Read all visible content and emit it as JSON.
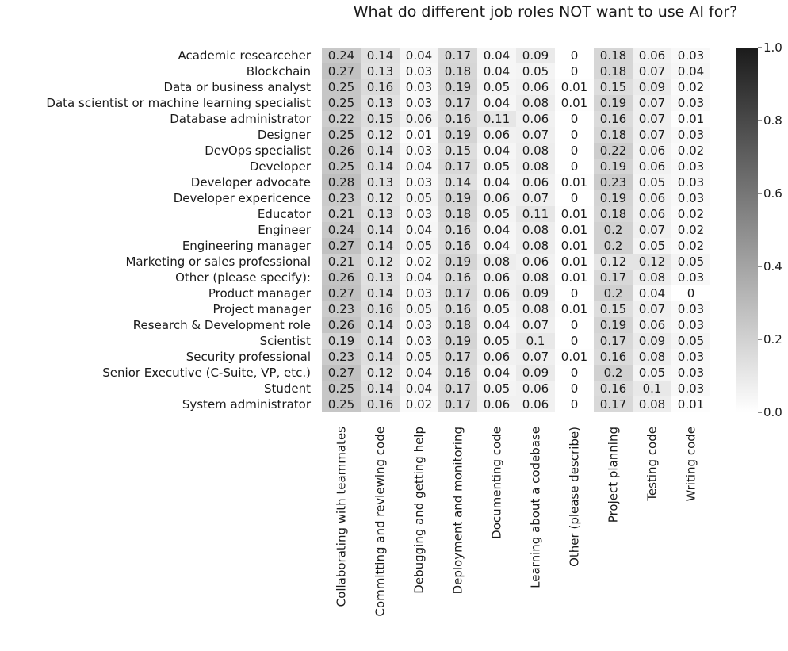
{
  "chart_data": {
    "type": "heatmap",
    "title": "What do different job roles NOT want to use AI for?",
    "rows": [
      "Academic researceher",
      "Blockchain",
      "Data or business analyst",
      "Data scientist or machine learning specialist",
      "Database administrator",
      "Designer",
      "DevOps specialist",
      "Developer",
      "Developer advocate",
      "Developer expericence",
      "Educator",
      "Engineer",
      "Engineering manager",
      "Marketing or sales professional",
      "Other (please specify):",
      "Product manager",
      "Project manager",
      "Research & Development role",
      "Scientist",
      "Security professional",
      "Senior Executive (C-Suite, VP, etc.)",
      "Student",
      "System administrator"
    ],
    "columns": [
      "Collaborating with teammates",
      "Committing and reviewing code",
      "Debugging and getting help",
      "Deployment and monitoring",
      "Documenting code",
      "Learning about a codebase",
      "Other (please describe)",
      "Project planning",
      "Testing code",
      "Writing code"
    ],
    "values": [
      [
        "0.24",
        "0.14",
        "0.04",
        "0.17",
        "0.04",
        "0.09",
        "0",
        "0.18",
        "0.06",
        "0.03"
      ],
      [
        "0.27",
        "0.13",
        "0.03",
        "0.18",
        "0.04",
        "0.05",
        "0",
        "0.18",
        "0.07",
        "0.04"
      ],
      [
        "0.25",
        "0.16",
        "0.03",
        "0.19",
        "0.05",
        "0.06",
        "0.01",
        "0.15",
        "0.09",
        "0.02"
      ],
      [
        "0.25",
        "0.13",
        "0.03",
        "0.17",
        "0.04",
        "0.08",
        "0.01",
        "0.19",
        "0.07",
        "0.03"
      ],
      [
        "0.22",
        "0.15",
        "0.06",
        "0.16",
        "0.11",
        "0.06",
        "0",
        "0.16",
        "0.07",
        "0.01"
      ],
      [
        "0.25",
        "0.12",
        "0.01",
        "0.19",
        "0.06",
        "0.07",
        "0",
        "0.18",
        "0.07",
        "0.03"
      ],
      [
        "0.26",
        "0.14",
        "0.03",
        "0.15",
        "0.04",
        "0.08",
        "0",
        "0.22",
        "0.06",
        "0.02"
      ],
      [
        "0.25",
        "0.14",
        "0.04",
        "0.17",
        "0.05",
        "0.08",
        "0",
        "0.19",
        "0.06",
        "0.03"
      ],
      [
        "0.28",
        "0.13",
        "0.03",
        "0.14",
        "0.04",
        "0.06",
        "0.01",
        "0.23",
        "0.05",
        "0.03"
      ],
      [
        "0.23",
        "0.12",
        "0.05",
        "0.19",
        "0.06",
        "0.07",
        "0",
        "0.19",
        "0.06",
        "0.03"
      ],
      [
        "0.21",
        "0.13",
        "0.03",
        "0.18",
        "0.05",
        "0.11",
        "0.01",
        "0.18",
        "0.06",
        "0.02"
      ],
      [
        "0.24",
        "0.14",
        "0.04",
        "0.16",
        "0.04",
        "0.08",
        "0.01",
        "0.2",
        "0.07",
        "0.02"
      ],
      [
        "0.27",
        "0.14",
        "0.05",
        "0.16",
        "0.04",
        "0.08",
        "0.01",
        "0.2",
        "0.05",
        "0.02"
      ],
      [
        "0.21",
        "0.12",
        "0.02",
        "0.19",
        "0.08",
        "0.06",
        "0.01",
        "0.12",
        "0.12",
        "0.05"
      ],
      [
        "0.26",
        "0.13",
        "0.04",
        "0.16",
        "0.06",
        "0.08",
        "0.01",
        "0.17",
        "0.08",
        "0.03"
      ],
      [
        "0.27",
        "0.14",
        "0.03",
        "0.17",
        "0.06",
        "0.09",
        "0",
        "0.2",
        "0.04",
        "0"
      ],
      [
        "0.23",
        "0.16",
        "0.05",
        "0.16",
        "0.05",
        "0.08",
        "0.01",
        "0.15",
        "0.07",
        "0.03"
      ],
      [
        "0.26",
        "0.14",
        "0.03",
        "0.18",
        "0.04",
        "0.07",
        "0",
        "0.19",
        "0.06",
        "0.03"
      ],
      [
        "0.19",
        "0.14",
        "0.03",
        "0.19",
        "0.05",
        "0.1",
        "0",
        "0.17",
        "0.09",
        "0.05"
      ],
      [
        "0.23",
        "0.14",
        "0.05",
        "0.17",
        "0.06",
        "0.07",
        "0.01",
        "0.16",
        "0.08",
        "0.03"
      ],
      [
        "0.27",
        "0.12",
        "0.04",
        "0.16",
        "0.04",
        "0.09",
        "0",
        "0.2",
        "0.05",
        "0.03"
      ],
      [
        "0.25",
        "0.14",
        "0.04",
        "0.17",
        "0.05",
        "0.06",
        "0",
        "0.16",
        "0.1",
        "0.03"
      ],
      [
        "0.25",
        "0.16",
        "0.02",
        "0.17",
        "0.06",
        "0.06",
        "0",
        "0.17",
        "0.08",
        "0.01"
      ]
    ],
    "colorbar": {
      "range": [
        0,
        1
      ],
      "ticks": [
        "0.0",
        "0.2",
        "0.4",
        "0.6",
        "0.8",
        "1.0"
      ],
      "low_color": "#ffffff",
      "high_color": "#1b1b1b"
    },
    "annotated": true,
    "grid": false
  }
}
